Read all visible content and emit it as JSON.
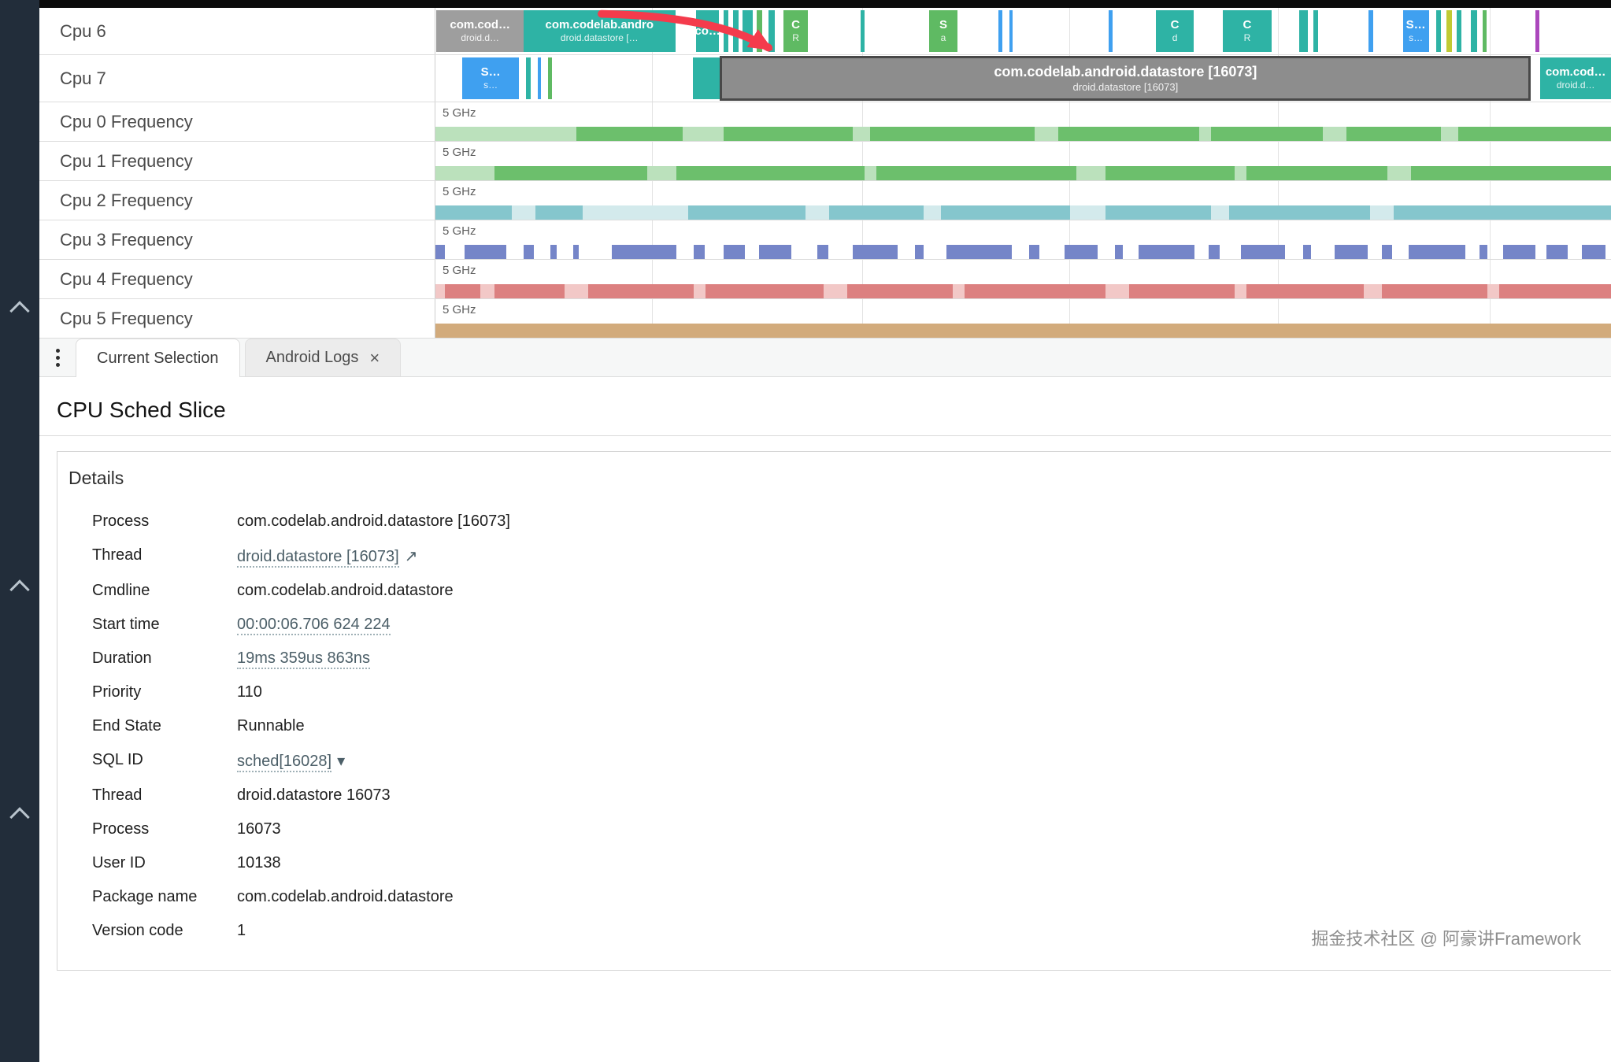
{
  "panel": {
    "title": "CPU Sched Slice"
  },
  "tabs": {
    "close_glyph": "×",
    "items": [
      {
        "label": "Current Selection",
        "active": true,
        "closable": false
      },
      {
        "label": "Android Logs",
        "active": false,
        "closable": true
      }
    ]
  },
  "details": {
    "title": "Details",
    "external_glyph": "↗",
    "dropdown_glyph": "▾",
    "rows": [
      {
        "label": "Process",
        "value": "com.codelab.android.datastore [16073]",
        "type": "text"
      },
      {
        "label": "Thread",
        "value": "droid.datastore [16073]",
        "type": "link-external"
      },
      {
        "label": "Cmdline",
        "value": "com.codelab.android.datastore",
        "type": "text"
      },
      {
        "label": "Start time",
        "value": "00:00:06.706 624 224",
        "type": "link"
      },
      {
        "label": "Duration",
        "value": "19ms 359us 863ns",
        "type": "link"
      },
      {
        "label": "Priority",
        "value": "110",
        "type": "text"
      },
      {
        "label": "End State",
        "value": "Runnable",
        "type": "text"
      },
      {
        "label": "SQL ID",
        "value": "sched[16028]",
        "type": "link-dropdown"
      },
      {
        "label": "Thread",
        "value": "droid.datastore 16073",
        "type": "text"
      },
      {
        "label": "Process",
        "value": "16073",
        "type": "text"
      },
      {
        "label": "User ID",
        "value": "10138",
        "type": "text"
      },
      {
        "label": "Package name",
        "value": "com.codelab.android.datastore",
        "type": "text"
      },
      {
        "label": "Version code",
        "value": "1",
        "type": "text"
      }
    ]
  },
  "watermark": "掘金技术社区 @ 阿豪讲Framework",
  "timeline": {
    "freq_unit": "5 GHz",
    "gridlines": [
      18.4,
      36.3,
      53.9,
      71.7,
      89.7
    ],
    "palette": {
      "teal": "#2eb3a5",
      "green": "#5fba63",
      "blue": "#3fa0f0",
      "gray": "#9e9e9e",
      "yellow": "#c0ca33",
      "purple": "#ab47bc",
      "sel": "#8d8d8d"
    },
    "arrow_color": "#f43b4c",
    "tracks": [
      {
        "label": "Cpu 6",
        "type": "sched",
        "slices": [
          {
            "x": 0.1,
            "w": 7.4,
            "c": "gray",
            "l1": "com.cod…",
            "l2": "droid.d…"
          },
          {
            "x": 7.5,
            "w": 12.9,
            "c": "teal",
            "l1": "com.codelab.andro",
            "l2": "droid.datastore […"
          },
          {
            "x": 22.2,
            "w": 1.9,
            "c": "teal",
            "l1": "co…"
          },
          {
            "x": 24.5,
            "w": 0.4,
            "c": "teal"
          },
          {
            "x": 25.3,
            "w": 0.5,
            "c": "teal"
          },
          {
            "x": 26.1,
            "w": 0.9,
            "c": "teal"
          },
          {
            "x": 27.3,
            "w": 0.5,
            "c": "green"
          },
          {
            "x": 28.3,
            "w": 0.6,
            "c": "teal"
          },
          {
            "x": 29.6,
            "w": 2.1,
            "c": "green",
            "l1": "C",
            "l2": "R"
          },
          {
            "x": 36.2,
            "w": 0.3,
            "c": "teal"
          },
          {
            "x": 42.0,
            "w": 2.4,
            "c": "green",
            "l1": "S",
            "l2": "a"
          },
          {
            "x": 47.9,
            "w": 0.3,
            "c": "blue"
          },
          {
            "x": 48.8,
            "w": 0.3,
            "c": "blue"
          },
          {
            "x": 57.3,
            "w": 0.3,
            "c": "blue"
          },
          {
            "x": 61.3,
            "w": 3.2,
            "c": "teal",
            "l1": "C",
            "l2": "d"
          },
          {
            "x": 67.0,
            "w": 4.1,
            "c": "teal",
            "l1": "C",
            "l2": "R"
          },
          {
            "x": 73.5,
            "w": 0.7,
            "c": "teal"
          },
          {
            "x": 74.7,
            "w": 0.4,
            "c": "teal"
          },
          {
            "x": 79.4,
            "w": 0.4,
            "c": "blue"
          },
          {
            "x": 82.3,
            "w": 2.2,
            "c": "blue",
            "l1": "S…",
            "l2": "s…"
          },
          {
            "x": 85.1,
            "w": 0.4,
            "c": "teal"
          },
          {
            "x": 86.0,
            "w": 0.5,
            "c": "yellow"
          },
          {
            "x": 86.9,
            "w": 0.4,
            "c": "teal"
          },
          {
            "x": 88.1,
            "w": 0.5,
            "c": "teal"
          },
          {
            "x": 89.1,
            "w": 0.3,
            "c": "green"
          },
          {
            "x": 93.6,
            "w": 0.3,
            "c": "purple"
          }
        ]
      },
      {
        "label": "Cpu 7",
        "type": "sched",
        "slices": [
          {
            "x": 2.3,
            "w": 4.8,
            "c": "blue",
            "l1": "S…",
            "l2": "s…"
          },
          {
            "x": 7.7,
            "w": 0.4,
            "c": "teal"
          },
          {
            "x": 8.7,
            "w": 0.3,
            "c": "blue"
          },
          {
            "x": 9.6,
            "w": 0.3,
            "c": "green"
          },
          {
            "x": 21.9,
            "w": 2.3,
            "c": "teal"
          },
          {
            "x": 24.2,
            "w": 69.0,
            "c": "sel",
            "sel": true,
            "l1": "com.codelab.android.datastore [16073]",
            "l2": "droid.datastore [16073]"
          },
          {
            "x": 94.0,
            "w": 6.0,
            "c": "teal",
            "l1": "com.cod…",
            "l2": "droid.d…"
          }
        ]
      },
      {
        "label": "Cpu 0 Frequency",
        "type": "freq",
        "dark": "#6cbf6c",
        "light": "#bbe1bc",
        "segs": [
          [
            0,
            12,
            1
          ],
          [
            12,
            9,
            0
          ],
          [
            21,
            3.5,
            1
          ],
          [
            24.5,
            11,
            0
          ],
          [
            35.5,
            1.5,
            1
          ],
          [
            37,
            14,
            0
          ],
          [
            51,
            2,
            1
          ],
          [
            53,
            12,
            0
          ],
          [
            65,
            1,
            1
          ],
          [
            66,
            9.5,
            0
          ],
          [
            75.5,
            2,
            1
          ],
          [
            77.5,
            8,
            0
          ],
          [
            85.5,
            1.5,
            1
          ],
          [
            87,
            13,
            0
          ]
        ]
      },
      {
        "label": "Cpu 1 Frequency",
        "type": "freq",
        "dark": "#6cbf6c",
        "light": "#bbe1bc",
        "segs": [
          [
            0,
            5,
            1
          ],
          [
            5,
            13,
            0
          ],
          [
            18,
            2.5,
            1
          ],
          [
            20.5,
            16,
            0
          ],
          [
            36.5,
            1,
            1
          ],
          [
            37.5,
            17,
            0
          ],
          [
            54.5,
            2.5,
            1
          ],
          [
            57,
            11,
            0
          ],
          [
            68,
            1,
            1
          ],
          [
            69,
            12,
            0
          ],
          [
            81,
            2,
            1
          ],
          [
            83,
            17,
            0
          ]
        ]
      },
      {
        "label": "Cpu 2 Frequency",
        "type": "freq",
        "dark": "#85c6cd",
        "light": "#d3eaec",
        "segs": [
          [
            0,
            6.5,
            0
          ],
          [
            6.5,
            2,
            1
          ],
          [
            8.5,
            4,
            0
          ],
          [
            12.5,
            9,
            1
          ],
          [
            21.5,
            10,
            0
          ],
          [
            31.5,
            2,
            1
          ],
          [
            33.5,
            8,
            0
          ],
          [
            41.5,
            1.5,
            1
          ],
          [
            43,
            11,
            0
          ],
          [
            54,
            3,
            1
          ],
          [
            57,
            9,
            0
          ],
          [
            66,
            1.5,
            1
          ],
          [
            67.5,
            12,
            0
          ],
          [
            79.5,
            2,
            1
          ],
          [
            81.5,
            18.5,
            0
          ]
        ]
      },
      {
        "label": "Cpu 3 Frequency",
        "type": "freq",
        "dark": "#7585c8",
        "light": "#c3cae8",
        "segs": [
          [
            0,
            0.8,
            0
          ],
          [
            2.5,
            3.5,
            0
          ],
          [
            7.5,
            0.9,
            0
          ],
          [
            9.8,
            0.5,
            0
          ],
          [
            11.7,
            0.5,
            0
          ],
          [
            15,
            5.5,
            0
          ],
          [
            22,
            0.9,
            0
          ],
          [
            24.5,
            1.8,
            0
          ],
          [
            27.5,
            2.8,
            0
          ],
          [
            32.5,
            0.9,
            0
          ],
          [
            35.5,
            3.8,
            0
          ],
          [
            40.8,
            0.7,
            0
          ],
          [
            43.5,
            5.5,
            0
          ],
          [
            50.5,
            0.9,
            0
          ],
          [
            53.5,
            2.8,
            0
          ],
          [
            57.8,
            0.7,
            0
          ],
          [
            59.8,
            4.8,
            0
          ],
          [
            65.8,
            0.9,
            0
          ],
          [
            68.5,
            3.8,
            0
          ],
          [
            73.8,
            0.7,
            0
          ],
          [
            76.5,
            2.8,
            0
          ],
          [
            80.5,
            0.9,
            0
          ],
          [
            82.8,
            4.8,
            0
          ],
          [
            88.8,
            0.7,
            0
          ],
          [
            90.8,
            2.8,
            0
          ],
          [
            94.5,
            1.8,
            0
          ],
          [
            97.5,
            2,
            0
          ]
        ]
      },
      {
        "label": "Cpu 4 Frequency",
        "type": "freq",
        "dark": "#dc8080",
        "light": "#f2c8c7",
        "segs": [
          [
            0,
            0.8,
            1
          ],
          [
            0.8,
            3,
            0
          ],
          [
            3.8,
            1.2,
            1
          ],
          [
            5,
            6,
            0
          ],
          [
            11,
            2,
            1
          ],
          [
            13,
            9,
            0
          ],
          [
            22,
            1,
            1
          ],
          [
            23,
            10,
            0
          ],
          [
            33,
            2,
            1
          ],
          [
            35,
            9,
            0
          ],
          [
            44,
            1,
            1
          ],
          [
            45,
            12,
            0
          ],
          [
            57,
            2,
            1
          ],
          [
            59,
            9,
            0
          ],
          [
            68,
            1,
            1
          ],
          [
            69,
            10,
            0
          ],
          [
            79,
            1.5,
            1
          ],
          [
            80.5,
            9,
            0
          ],
          [
            89.5,
            1,
            1
          ],
          [
            90.5,
            9.5,
            0
          ]
        ]
      },
      {
        "label": "Cpu 5 Frequency",
        "type": "freq",
        "dark": "#d2ab7c",
        "light": "#e8d3b3",
        "segs": [
          [
            0,
            100,
            0
          ]
        ]
      }
    ]
  }
}
